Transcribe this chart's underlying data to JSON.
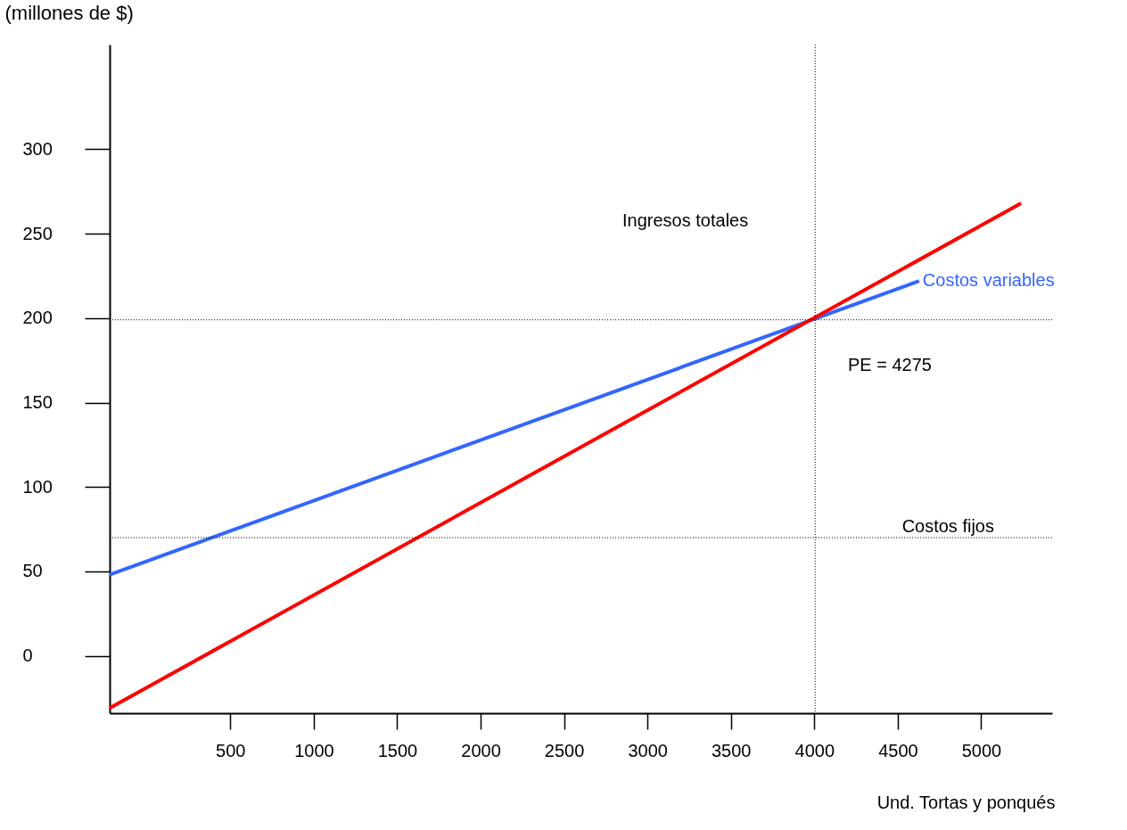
{
  "chart_data": {
    "type": "line",
    "ylabel": "(millones de $)",
    "xlabel": "Und. Tortas y\nponqués",
    "xlim": [
      -223,
      5425
    ],
    "ylim": [
      -34,
      362
    ],
    "xticks": [
      500,
      1000,
      1500,
      2000,
      2500,
      3000,
      3500,
      4000,
      4500,
      5000
    ],
    "yticks": [
      0,
      50,
      100,
      150,
      200,
      250,
      300
    ],
    "grid": false,
    "legend": false,
    "marker": "none",
    "line_style": "solid",
    "series": [
      {
        "name": "Costos variables",
        "color": "#3366ff",
        "x": [
          -223,
          4628
        ],
        "values": [
          48,
          222
        ]
      },
      {
        "color": "#ff0000",
        "x": [
          -223,
          5239
        ],
        "values": [
          -31,
          268
        ]
      }
    ],
    "ref_lines": [
      {
        "axis": "y",
        "value": 199,
        "color": "#000000",
        "line_style": "dotted"
      },
      {
        "axis": "y",
        "value": 70,
        "color": "#000000",
        "line_style": "dotted",
        "label": "Costos fijos"
      },
      {
        "axis": "x",
        "value": 4005,
        "color": "#000000",
        "line_style": "dotted"
      }
    ],
    "annotations": [
      "Ingresos totales",
      "PE = 4275"
    ]
  }
}
